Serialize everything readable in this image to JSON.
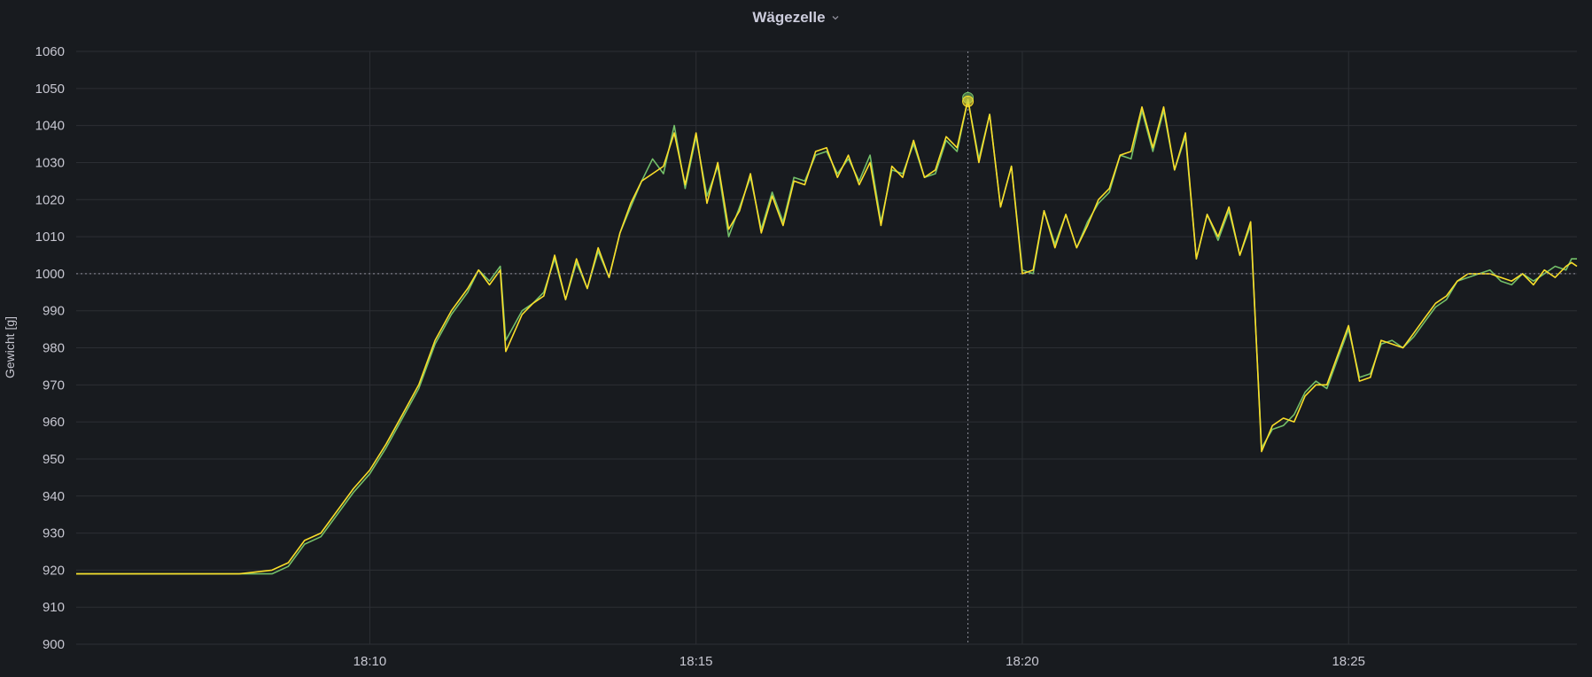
{
  "panel": {
    "title": "Wägezelle",
    "menu_icon": "chevron-down-icon"
  },
  "chart_data": {
    "type": "line",
    "title": "Wägezelle",
    "ylabel": "Gewicht [g]",
    "xlabel": "",
    "ylim": [
      900,
      1060
    ],
    "yticks": [
      900,
      910,
      920,
      930,
      940,
      950,
      960,
      970,
      980,
      990,
      1000,
      1010,
      1020,
      1030,
      1040,
      1050,
      1060
    ],
    "xlim": [
      "18:05:30",
      "18:28:30"
    ],
    "xticks": [
      "18:10",
      "18:15",
      "18:20",
      "18:25"
    ],
    "grid": true,
    "legend": "none",
    "crosshair": {
      "x": "18:19:10",
      "y": 1000
    },
    "series": [
      {
        "color": "#73bf69",
        "points": [
          [
            "18:05:30",
            919
          ],
          [
            "18:06:00",
            919
          ],
          [
            "18:06:30",
            919
          ],
          [
            "18:07:00",
            919
          ],
          [
            "18:07:30",
            919
          ],
          [
            "18:08:00",
            919
          ],
          [
            "18:08:30",
            919
          ],
          [
            "18:08:45",
            921
          ],
          [
            "18:09:00",
            927
          ],
          [
            "18:09:15",
            929
          ],
          [
            "18:09:30",
            935
          ],
          [
            "18:09:45",
            941
          ],
          [
            "18:10:00",
            946
          ],
          [
            "18:10:15",
            953
          ],
          [
            "18:10:30",
            961
          ],
          [
            "18:10:45",
            969
          ],
          [
            "18:11:00",
            981
          ],
          [
            "18:11:15",
            989
          ],
          [
            "18:11:30",
            995
          ],
          [
            "18:11:40",
            1001
          ],
          [
            "18:11:50",
            998
          ],
          [
            "18:12:00",
            1002
          ],
          [
            "18:12:05",
            982
          ],
          [
            "18:12:20",
            990
          ],
          [
            "18:12:30",
            992
          ],
          [
            "18:12:40",
            995
          ],
          [
            "18:12:50",
            1004
          ],
          [
            "18:13:00",
            993
          ],
          [
            "18:13:10",
            1003
          ],
          [
            "18:13:20",
            996
          ],
          [
            "18:13:30",
            1006
          ],
          [
            "18:13:40",
            999
          ],
          [
            "18:13:50",
            1011
          ],
          [
            "18:14:00",
            1018
          ],
          [
            "18:14:10",
            1025
          ],
          [
            "18:14:20",
            1031
          ],
          [
            "18:14:30",
            1027
          ],
          [
            "18:14:40",
            1040
          ],
          [
            "18:14:50",
            1023
          ],
          [
            "18:15:00",
            1037
          ],
          [
            "18:15:10",
            1021
          ],
          [
            "18:15:20",
            1029
          ],
          [
            "18:15:30",
            1010
          ],
          [
            "18:15:40",
            1018
          ],
          [
            "18:15:50",
            1026
          ],
          [
            "18:16:00",
            1012
          ],
          [
            "18:16:10",
            1022
          ],
          [
            "18:16:20",
            1014
          ],
          [
            "18:16:30",
            1026
          ],
          [
            "18:16:40",
            1025
          ],
          [
            "18:16:50",
            1032
          ],
          [
            "18:17:00",
            1033
          ],
          [
            "18:17:10",
            1027
          ],
          [
            "18:17:20",
            1031
          ],
          [
            "18:17:30",
            1025
          ],
          [
            "18:17:40",
            1032
          ],
          [
            "18:17:50",
            1014
          ],
          [
            "18:18:00",
            1028
          ],
          [
            "18:18:10",
            1027
          ],
          [
            "18:18:20",
            1035
          ],
          [
            "18:18:30",
            1026
          ],
          [
            "18:18:40",
            1027
          ],
          [
            "18:18:50",
            1036
          ],
          [
            "18:19:00",
            1033
          ],
          [
            "18:19:10",
            1047
          ],
          [
            "18:19:20",
            1031
          ],
          [
            "18:19:30",
            1043
          ],
          [
            "18:19:40",
            1018
          ],
          [
            "18:19:50",
            1029
          ],
          [
            "18:20:00",
            1001
          ],
          [
            "18:20:10",
            1000
          ],
          [
            "18:20:20",
            1017
          ],
          [
            "18:20:30",
            1008
          ],
          [
            "18:20:40",
            1016
          ],
          [
            "18:20:50",
            1007
          ],
          [
            "18:21:00",
            1014
          ],
          [
            "18:21:10",
            1019
          ],
          [
            "18:21:20",
            1022
          ],
          [
            "18:21:30",
            1032
          ],
          [
            "18:21:40",
            1031
          ],
          [
            "18:21:50",
            1044
          ],
          [
            "18:22:00",
            1033
          ],
          [
            "18:22:10",
            1044
          ],
          [
            "18:22:20",
            1028
          ],
          [
            "18:22:30",
            1037
          ],
          [
            "18:22:40",
            1004
          ],
          [
            "18:22:50",
            1016
          ],
          [
            "18:23:00",
            1009
          ],
          [
            "18:23:10",
            1017
          ],
          [
            "18:23:20",
            1005
          ],
          [
            "18:23:30",
            1013
          ],
          [
            "18:23:40",
            953
          ],
          [
            "18:23:50",
            958
          ],
          [
            "18:24:00",
            959
          ],
          [
            "18:24:10",
            962
          ],
          [
            "18:24:20",
            968
          ],
          [
            "18:24:30",
            971
          ],
          [
            "18:24:40",
            969
          ],
          [
            "18:24:50",
            977
          ],
          [
            "18:25:00",
            985
          ],
          [
            "18:25:10",
            972
          ],
          [
            "18:25:20",
            973
          ],
          [
            "18:25:30",
            981
          ],
          [
            "18:25:40",
            982
          ],
          [
            "18:25:50",
            980
          ],
          [
            "18:26:00",
            983
          ],
          [
            "18:26:10",
            987
          ],
          [
            "18:26:20",
            991
          ],
          [
            "18:26:30",
            993
          ],
          [
            "18:26:40",
            998
          ],
          [
            "18:26:50",
            999
          ],
          [
            "18:27:00",
            1000
          ],
          [
            "18:27:10",
            1001
          ],
          [
            "18:27:20",
            998
          ],
          [
            "18:27:30",
            997
          ],
          [
            "18:27:40",
            1000
          ],
          [
            "18:27:50",
            998
          ],
          [
            "18:28:00",
            1000
          ],
          [
            "18:28:10",
            1002
          ],
          [
            "18:28:20",
            1001
          ],
          [
            "18:28:25",
            1004
          ],
          [
            "18:28:30",
            1004
          ]
        ]
      },
      {
        "color": "#fade2a",
        "points": [
          [
            "18:05:30",
            919
          ],
          [
            "18:06:00",
            919
          ],
          [
            "18:06:30",
            919
          ],
          [
            "18:07:00",
            919
          ],
          [
            "18:07:30",
            919
          ],
          [
            "18:08:00",
            919
          ],
          [
            "18:08:30",
            920
          ],
          [
            "18:08:45",
            922
          ],
          [
            "18:09:00",
            928
          ],
          [
            "18:09:15",
            930
          ],
          [
            "18:09:30",
            936
          ],
          [
            "18:09:45",
            942
          ],
          [
            "18:10:00",
            947
          ],
          [
            "18:10:15",
            954
          ],
          [
            "18:10:30",
            962
          ],
          [
            "18:10:45",
            970
          ],
          [
            "18:11:00",
            982
          ],
          [
            "18:11:15",
            990
          ],
          [
            "18:11:30",
            996
          ],
          [
            "18:11:40",
            1001
          ],
          [
            "18:11:50",
            997
          ],
          [
            "18:12:00",
            1001
          ],
          [
            "18:12:05",
            979
          ],
          [
            "18:12:20",
            989
          ],
          [
            "18:12:30",
            992
          ],
          [
            "18:12:40",
            994
          ],
          [
            "18:12:50",
            1005
          ],
          [
            "18:13:00",
            993
          ],
          [
            "18:13:10",
            1004
          ],
          [
            "18:13:20",
            996
          ],
          [
            "18:13:30",
            1007
          ],
          [
            "18:13:40",
            999
          ],
          [
            "18:13:50",
            1011
          ],
          [
            "18:14:00",
            1019
          ],
          [
            "18:14:10",
            1025
          ],
          [
            "18:14:20",
            1027
          ],
          [
            "18:14:30",
            1029
          ],
          [
            "18:14:40",
            1038
          ],
          [
            "18:14:50",
            1024
          ],
          [
            "18:15:00",
            1038
          ],
          [
            "18:15:10",
            1019
          ],
          [
            "18:15:20",
            1030
          ],
          [
            "18:15:30",
            1012
          ],
          [
            "18:15:40",
            1017
          ],
          [
            "18:15:50",
            1027
          ],
          [
            "18:16:00",
            1011
          ],
          [
            "18:16:10",
            1021
          ],
          [
            "18:16:20",
            1013
          ],
          [
            "18:16:30",
            1025
          ],
          [
            "18:16:40",
            1024
          ],
          [
            "18:16:50",
            1033
          ],
          [
            "18:17:00",
            1034
          ],
          [
            "18:17:10",
            1026
          ],
          [
            "18:17:20",
            1032
          ],
          [
            "18:17:30",
            1024
          ],
          [
            "18:17:40",
            1030
          ],
          [
            "18:17:50",
            1013
          ],
          [
            "18:18:00",
            1029
          ],
          [
            "18:18:10",
            1026
          ],
          [
            "18:18:20",
            1036
          ],
          [
            "18:18:30",
            1026
          ],
          [
            "18:18:40",
            1028
          ],
          [
            "18:18:50",
            1037
          ],
          [
            "18:19:00",
            1034
          ],
          [
            "18:19:10",
            1047
          ],
          [
            "18:19:20",
            1030
          ],
          [
            "18:19:30",
            1043
          ],
          [
            "18:19:40",
            1018
          ],
          [
            "18:19:50",
            1029
          ],
          [
            "18:20:00",
            1000
          ],
          [
            "18:20:10",
            1001
          ],
          [
            "18:20:20",
            1017
          ],
          [
            "18:20:30",
            1007
          ],
          [
            "18:20:40",
            1016
          ],
          [
            "18:20:50",
            1007
          ],
          [
            "18:21:00",
            1013
          ],
          [
            "18:21:10",
            1020
          ],
          [
            "18:21:20",
            1023
          ],
          [
            "18:21:30",
            1032
          ],
          [
            "18:21:40",
            1033
          ],
          [
            "18:21:50",
            1045
          ],
          [
            "18:22:00",
            1034
          ],
          [
            "18:22:10",
            1045
          ],
          [
            "18:22:20",
            1028
          ],
          [
            "18:22:30",
            1038
          ],
          [
            "18:22:40",
            1004
          ],
          [
            "18:22:50",
            1016
          ],
          [
            "18:23:00",
            1010
          ],
          [
            "18:23:10",
            1018
          ],
          [
            "18:23:20",
            1005
          ],
          [
            "18:23:30",
            1014
          ],
          [
            "18:23:40",
            952
          ],
          [
            "18:23:50",
            959
          ],
          [
            "18:24:00",
            961
          ],
          [
            "18:24:10",
            960
          ],
          [
            "18:24:20",
            967
          ],
          [
            "18:24:30",
            970
          ],
          [
            "18:24:40",
            970
          ],
          [
            "18:24:50",
            978
          ],
          [
            "18:25:00",
            986
          ],
          [
            "18:25:10",
            971
          ],
          [
            "18:25:20",
            972
          ],
          [
            "18:25:30",
            982
          ],
          [
            "18:25:40",
            981
          ],
          [
            "18:25:50",
            980
          ],
          [
            "18:26:00",
            984
          ],
          [
            "18:26:10",
            988
          ],
          [
            "18:26:20",
            992
          ],
          [
            "18:26:30",
            994
          ],
          [
            "18:26:40",
            998
          ],
          [
            "18:26:50",
            1000
          ],
          [
            "18:27:00",
            1000
          ],
          [
            "18:27:10",
            1000
          ],
          [
            "18:27:20",
            999
          ],
          [
            "18:27:30",
            998
          ],
          [
            "18:27:40",
            1000
          ],
          [
            "18:27:50",
            997
          ],
          [
            "18:28:00",
            1001
          ],
          [
            "18:28:10",
            999
          ],
          [
            "18:28:20",
            1002
          ],
          [
            "18:28:25",
            1003
          ],
          [
            "18:28:30",
            1002
          ]
        ]
      }
    ]
  }
}
